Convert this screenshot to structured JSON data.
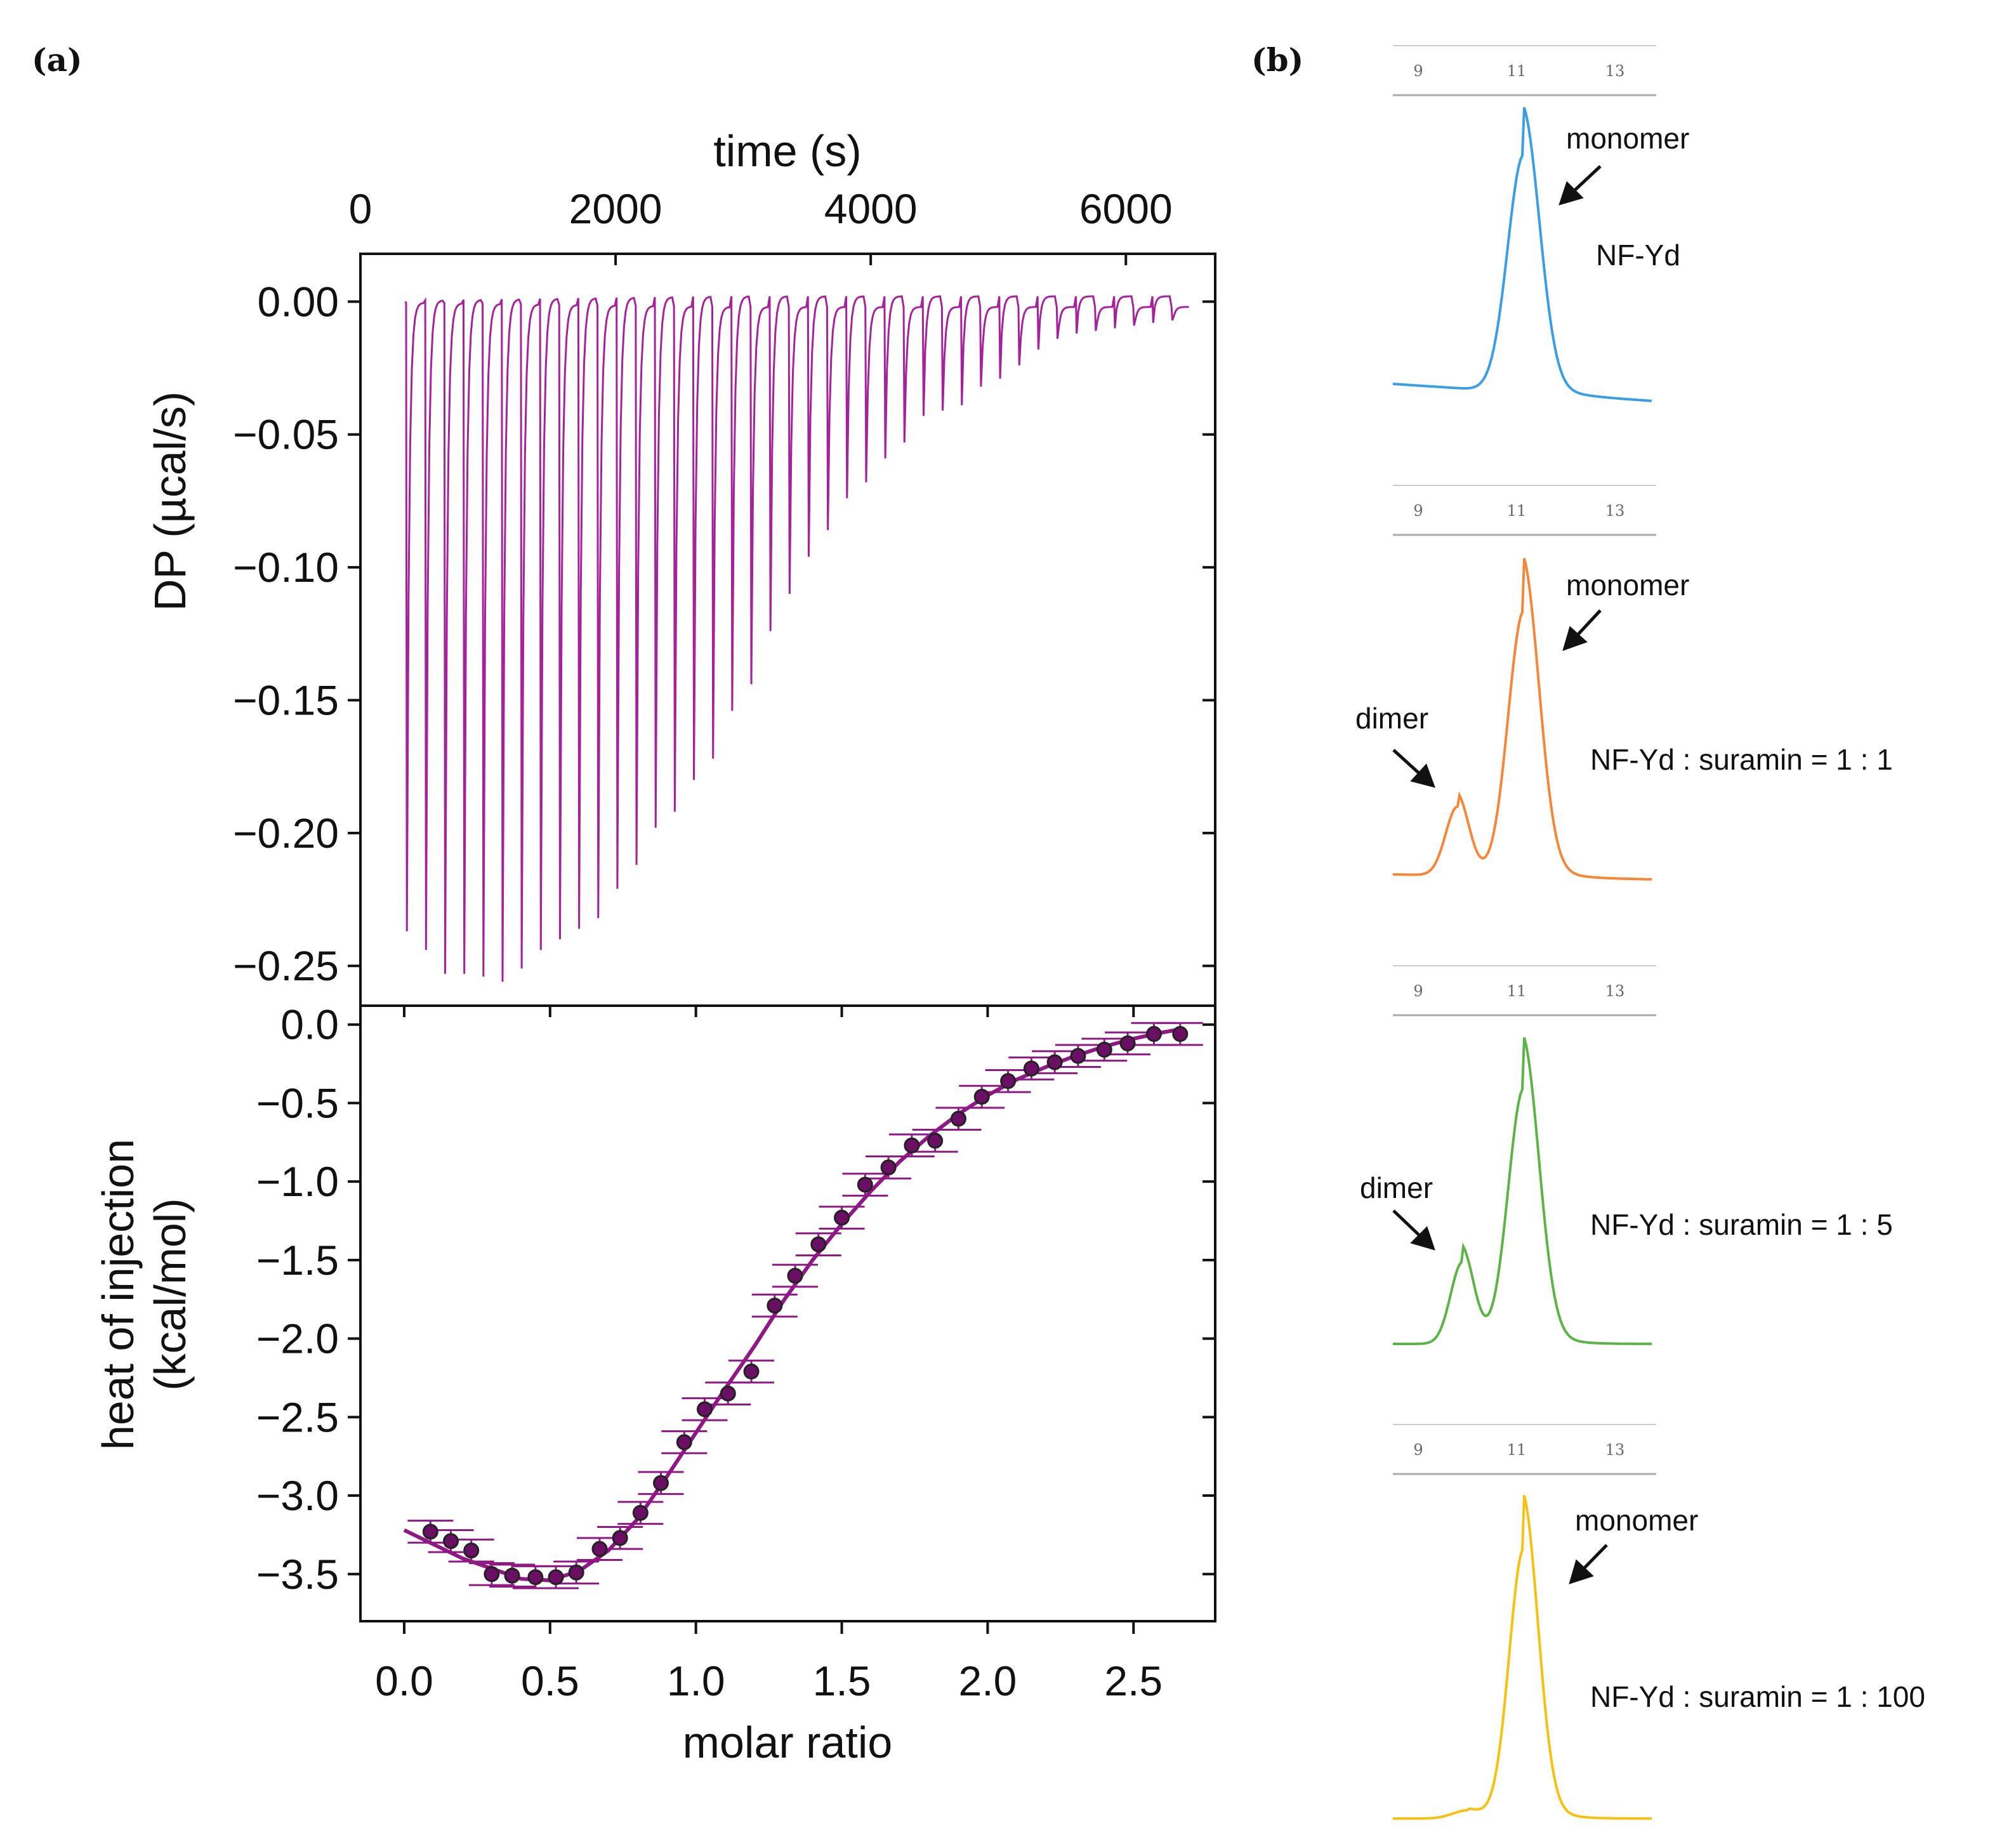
{
  "panel_labels": {
    "a": "(a)",
    "b": "(b)"
  },
  "colors": {
    "thermogram": "#a4239b",
    "binding_points": "#6a0f63",
    "binding_fit": "#8e1884",
    "sec": [
      "#3a9ee4",
      "#f4873a",
      "#5cb346",
      "#f5c113"
    ]
  },
  "chart_data": [
    {
      "id": "itc-thermogram",
      "type": "line",
      "title": "",
      "xlabel": "time (s)",
      "ylabel": "DP (µcal/s)",
      "xlim": [
        0,
        6700
      ],
      "ylim": [
        -0.265,
        0.018
      ],
      "x_ticks": [
        "0",
        "2000",
        "4000",
        "6000"
      ],
      "x_tick_values": [
        0,
        2000,
        4000,
        6000
      ],
      "y_ticks": [
        "0.00",
        "−0.05",
        "−0.10",
        "−0.15",
        "−0.20",
        "−0.25"
      ],
      "y_tick_values": [
        0,
        -0.05,
        -0.1,
        -0.15,
        -0.2,
        -0.25
      ],
      "injection_interval_s": 150,
      "first_injection_s": 350,
      "injection_peaks": [
        -0.237,
        -0.244,
        -0.253,
        -0.253,
        -0.254,
        -0.256,
        -0.251,
        -0.244,
        -0.24,
        -0.236,
        -0.232,
        -0.221,
        -0.212,
        -0.198,
        -0.192,
        -0.18,
        -0.172,
        -0.154,
        -0.144,
        -0.124,
        -0.11,
        -0.096,
        -0.086,
        -0.074,
        -0.068,
        -0.059,
        -0.053,
        -0.043,
        -0.041,
        -0.039,
        -0.032,
        -0.029,
        -0.024,
        -0.018,
        -0.014,
        -0.012,
        -0.011,
        -0.01,
        -0.009,
        -0.008,
        -0.007
      ]
    },
    {
      "id": "binding-isotherm",
      "type": "scatter",
      "title": "",
      "xlabel": "molar ratio",
      "ylabel": "heat of injection",
      "ylabel2": "(kcal/mol)",
      "xlim": [
        -0.15,
        2.78
      ],
      "ylim": [
        -3.8,
        0.12
      ],
      "x_ticks": [
        "0.0",
        "0.5",
        "1.0",
        "1.5",
        "2.0",
        "2.5"
      ],
      "x_tick_values": [
        0,
        0.5,
        1.0,
        1.5,
        2.0,
        2.5
      ],
      "y_ticks": [
        "0.0",
        "−0.5",
        "−1.0",
        "−1.5",
        "−2.0",
        "−2.5",
        "−3.0",
        "−3.5"
      ],
      "y_tick_values": [
        0,
        -0.5,
        -1.0,
        -1.5,
        -2.0,
        -2.5,
        -3.0,
        -3.5
      ],
      "error": 0.07,
      "x": [
        0.09,
        0.16,
        0.23,
        0.3,
        0.37,
        0.45,
        0.52,
        0.59,
        0.67,
        0.74,
        0.81,
        0.88,
        0.96,
        1.03,
        1.11,
        1.19,
        1.27,
        1.34,
        1.42,
        1.5,
        1.58,
        1.66,
        1.74,
        1.82,
        1.9,
        1.98,
        2.07,
        2.15,
        2.23,
        2.31,
        2.4,
        2.48,
        2.57,
        2.66
      ],
      "y": [
        -3.23,
        -3.29,
        -3.35,
        -3.5,
        -3.51,
        -3.52,
        -3.52,
        -3.49,
        -3.34,
        -3.27,
        -3.11,
        -2.92,
        -2.66,
        -2.45,
        -2.35,
        -2.21,
        -1.79,
        -1.6,
        -1.4,
        -1.23,
        -1.02,
        -0.91,
        -0.77,
        -0.74,
        -0.6,
        -0.46,
        -0.36,
        -0.28,
        -0.24,
        -0.2,
        -0.16,
        -0.12,
        -0.06,
        -0.06
      ],
      "fit_x": [
        0.0,
        0.2,
        0.4,
        0.5,
        0.6,
        0.7,
        0.8,
        0.9,
        1.0,
        1.1,
        1.2,
        1.3,
        1.4,
        1.5,
        1.6,
        1.7,
        1.8,
        1.9,
        2.0,
        2.1,
        2.2,
        2.3,
        2.4,
        2.5,
        2.6,
        2.66
      ],
      "fit_y": [
        -3.22,
        -3.4,
        -3.53,
        -3.54,
        -3.48,
        -3.35,
        -3.15,
        -2.88,
        -2.6,
        -2.32,
        -2.05,
        -1.76,
        -1.5,
        -1.27,
        -1.06,
        -0.87,
        -0.71,
        -0.57,
        -0.45,
        -0.35,
        -0.27,
        -0.2,
        -0.14,
        -0.09,
        -0.05,
        -0.03
      ]
    },
    {
      "id": "sec-profiles",
      "type": "line",
      "title": "",
      "x_ticks": [
        "9",
        "11",
        "13"
      ],
      "x_tick_values": [
        9,
        11,
        13
      ],
      "traces": [
        {
          "label": "NF-Yd",
          "annotations": [
            "monomer"
          ],
          "peaks": [
            {
              "center": 11.15,
              "height": 1.0,
              "width": 0.33
            }
          ],
          "baseline": [
            0.0,
            -0.06
          ]
        },
        {
          "label": "NF-Yd : suramin = 1 : 1",
          "annotations": [
            "monomer",
            "dimer"
          ],
          "peaks": [
            {
              "center": 11.15,
              "height": 1.0,
              "width": 0.32
            },
            {
              "center": 9.8,
              "height": 0.26,
              "width": 0.24
            }
          ],
          "baseline": [
            0.0,
            -0.02
          ]
        },
        {
          "label": "NF-Yd : suramin = 1 : 5",
          "annotations": [
            "dimer"
          ],
          "peaks": [
            {
              "center": 11.15,
              "height": 1.0,
              "width": 0.32
            },
            {
              "center": 9.9,
              "height": 0.32,
              "width": 0.24
            }
          ],
          "baseline": [
            0.0,
            0.0
          ]
        },
        {
          "label": "NF-Yd : suramin = 1 : 100",
          "annotations": [
            "monomer"
          ],
          "peaks": [
            {
              "center": 11.15,
              "height": 1.0,
              "width": 0.3
            },
            {
              "center": 10.0,
              "height": 0.03,
              "width": 0.3
            }
          ],
          "baseline": [
            0.0,
            0.0
          ]
        }
      ]
    }
  ]
}
